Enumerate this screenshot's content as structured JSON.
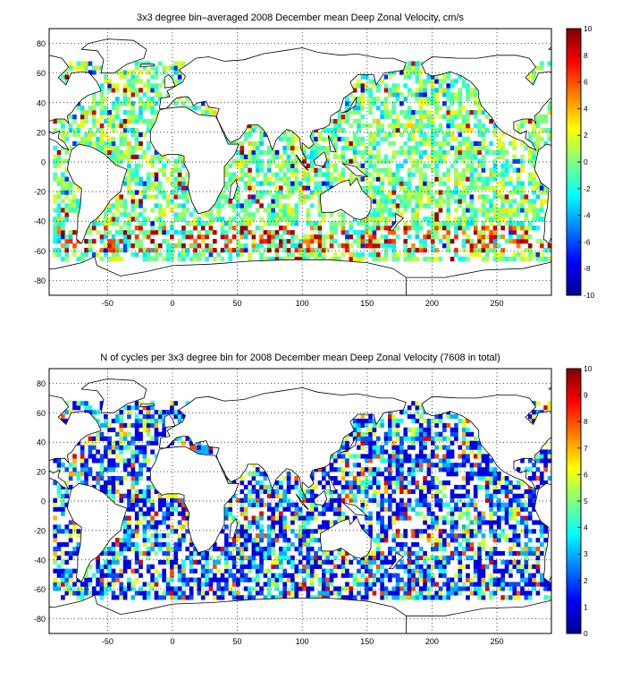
{
  "chart_data": [
    {
      "type": "heatmap",
      "title": "3x3 degree bin–averaged 2008 December mean Deep Zonal Velocity, cm/s",
      "xlabel": "",
      "ylabel": "",
      "xlim": [
        -95,
        292
      ],
      "ylim": [
        -90,
        90
      ],
      "xticks": [
        "-50",
        "0",
        "50",
        "100",
        "150",
        "200",
        "250"
      ],
      "yticks": [
        "80",
        "60",
        "40",
        "20",
        "0",
        "-20",
        "-40",
        "-60",
        "-80"
      ],
      "grid": true,
      "bin_size_deg": 3,
      "colormap": "jet",
      "colorbar": {
        "min": -10,
        "max": 10,
        "ticks": [
          "10",
          "8",
          "6",
          "4",
          "2",
          "0",
          "-2",
          "-4",
          "-6",
          "-8",
          "-10"
        ]
      },
      "value_distribution": {
        "min": -10,
        "max": 10,
        "typical_min": -3,
        "typical_max": 3,
        "strong_band_lat": [
          -62,
          -42
        ]
      }
    },
    {
      "type": "heatmap",
      "title": "N of cycles per 3x3 degree bin for 2008 December mean Deep Zonal Velocity (7608 in total)",
      "xlabel": "",
      "ylabel": "",
      "xlim": [
        -95,
        292
      ],
      "ylim": [
        -90,
        90
      ],
      "xticks": [
        "-50",
        "0",
        "50",
        "100",
        "150",
        "200",
        "250"
      ],
      "yticks": [
        "80",
        "60",
        "40",
        "20",
        "0",
        "-20",
        "-40",
        "-60",
        "-80"
      ],
      "grid": true,
      "bin_size_deg": 3,
      "colormap": "jet",
      "colorbar": {
        "min": 0,
        "max": 10,
        "ticks": [
          "10",
          "9",
          "8",
          "7",
          "6",
          "5",
          "4",
          "3",
          "2",
          "1",
          "0"
        ]
      },
      "value_distribution": {
        "min": 0,
        "max": 10,
        "typical_min": 1,
        "typical_max": 5
      }
    }
  ],
  "colors": {
    "jet_low": "#00008f",
    "jet_mid": "#80ff80",
    "jet_high": "#800000",
    "coastline": "#000000"
  }
}
